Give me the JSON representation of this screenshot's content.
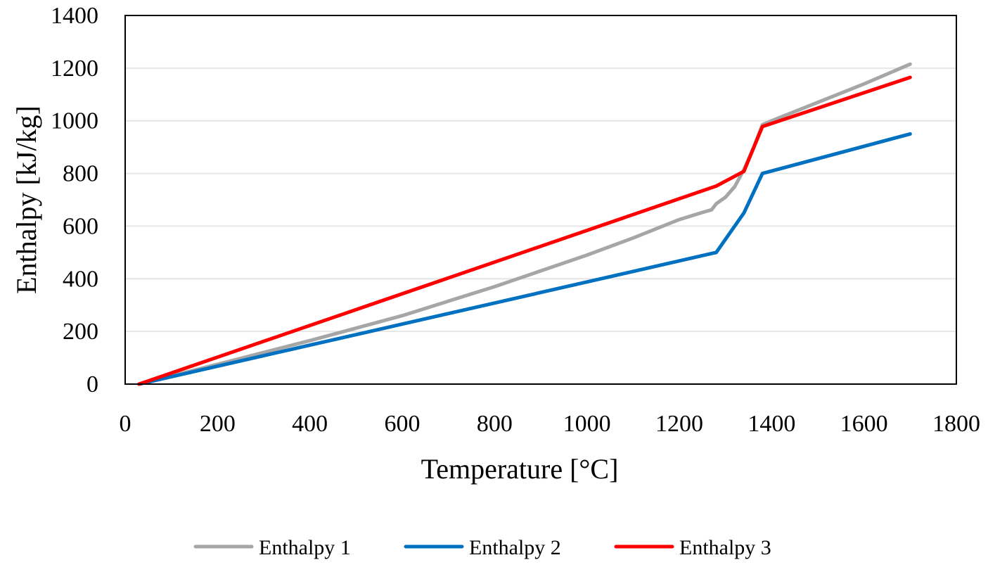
{
  "chart_data": {
    "type": "line",
    "title": "",
    "xlabel": "Temperature [°C]",
    "ylabel": "Enthalpy [kJ/kg]",
    "xlim": [
      0,
      1800
    ],
    "ylim": [
      0,
      1400
    ],
    "xticks": [
      0,
      200,
      400,
      600,
      800,
      1000,
      1200,
      1400,
      1600,
      1800
    ],
    "yticks": [
      0,
      200,
      400,
      600,
      800,
      1000,
      1200,
      1400
    ],
    "grid": "horizontal",
    "legend_position": "bottom",
    "series": [
      {
        "name": "Enthalpy 1",
        "color": "#a6a6a6",
        "x": [
          30,
          200,
          400,
          600,
          800,
          1000,
          1100,
          1200,
          1250,
          1270,
          1280,
          1300,
          1320,
          1340,
          1360,
          1380,
          1400,
          1500,
          1600,
          1700
        ],
        "y": [
          0,
          75,
          165,
          260,
          370,
          490,
          555,
          625,
          652,
          662,
          685,
          710,
          750,
          815,
          895,
          985,
          1000,
          1070,
          1140,
          1215
        ]
      },
      {
        "name": "Enthalpy 2",
        "color": "#0070c0",
        "x": [
          30,
          1280,
          1340,
          1380,
          1700
        ],
        "y": [
          0,
          500,
          650,
          800,
          950
        ]
      },
      {
        "name": "Enthalpy 3",
        "color": "#ff0000",
        "x": [
          30,
          1280,
          1340,
          1380,
          1700
        ],
        "y": [
          0,
          752,
          808,
          978,
          1165
        ]
      }
    ]
  }
}
